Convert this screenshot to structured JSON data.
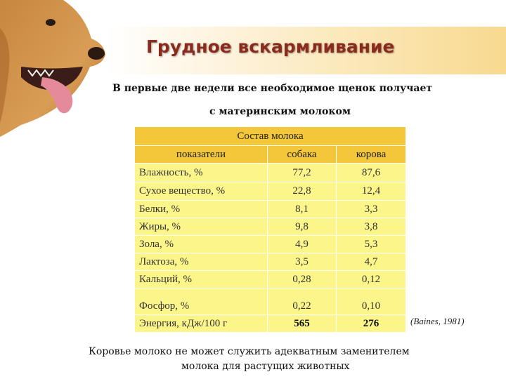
{
  "title": "Грудное вскармливание",
  "subtitle_line1": "В первые две недели все необходимое щенок получает",
  "subtitle_line2": "с материнским молоком",
  "table": {
    "caption": "Состав молока",
    "headers": [
      "показатели",
      "собака",
      "корова"
    ],
    "rows": [
      {
        "label": "Влажность, %",
        "dog": "77,2",
        "cow": "87,6"
      },
      {
        "label": "Сухое вещество, %",
        "dog": "22,8",
        "cow": "12,4"
      },
      {
        "label": "Белки, %",
        "dog": "8,1",
        "cow": "3,3"
      },
      {
        "label": "Жиры, %",
        "dog": "9,8",
        "cow": "3,8"
      },
      {
        "label": "Зола, %",
        "dog": "4,9",
        "cow": "5,3"
      },
      {
        "label": "Лактоза, %",
        "dog": "3,5",
        "cow": "4,7"
      },
      {
        "label": "Кальций, %",
        "dog": "0,28",
        "cow": "0,12"
      },
      {
        "label": "Фосфор, %",
        "dog": "0,22",
        "cow": "0,10"
      },
      {
        "label": "Энергия, кДж/100 г",
        "dog": "565",
        "cow": "276"
      }
    ]
  },
  "source": "(Baines, 1981)",
  "footer_line1": "Коровье молоко не может служить адекватным заменителем",
  "footer_line2": "молока для растущих животных",
  "colors": {
    "title": "#8b2b1e",
    "header": "#f4c63a",
    "cell": "#fbf58a"
  },
  "image": {
    "icon": "dog-photo-icon"
  }
}
